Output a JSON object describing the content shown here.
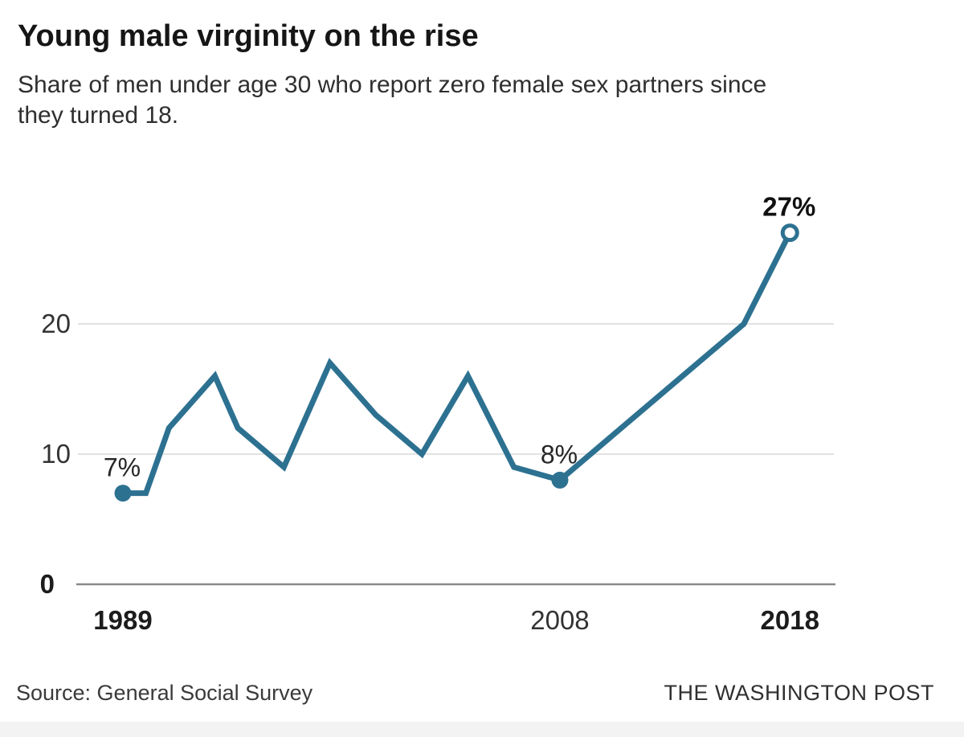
{
  "header": {
    "title": "Young male virginity on the rise",
    "subtitle_lines": [
      "Share of men under age 30 who report zero female sex partners since",
      "they turned 18."
    ]
  },
  "chart_data": {
    "type": "line",
    "title": "Young male virginity on the rise",
    "subtitle": "Share of men under age 30 who report zero female sex partners since they turned 18.",
    "series_name": "Share of men under 30 reporting zero female sex partners (%)",
    "x": [
      1989,
      1990,
      1991,
      1993,
      1994,
      1996,
      1998,
      2000,
      2002,
      2004,
      2006,
      2008,
      2016,
      2018
    ],
    "values": [
      7,
      7,
      12,
      16,
      12,
      9,
      17,
      13,
      10,
      16,
      9,
      8,
      20,
      27
    ],
    "xlabel": "",
    "ylabel": "",
    "xlim": [
      1989,
      2018
    ],
    "ylim": [
      0,
      28
    ],
    "yticks": [
      {
        "value": 0,
        "label": "0",
        "bold": true
      },
      {
        "value": 10,
        "label": "10",
        "bold": false
      },
      {
        "value": 20,
        "label": "20",
        "bold": false
      }
    ],
    "xticks": [
      {
        "value": 1989,
        "label": "1989",
        "bold": true
      },
      {
        "value": 2008,
        "label": "2008",
        "bold": false
      },
      {
        "value": 2018,
        "label": "2018",
        "bold": true
      }
    ],
    "grid": "horizontal-only",
    "legend": "none",
    "line_color": "#2d7191",
    "annotations": [
      {
        "x": 1989,
        "value": 7,
        "label": "7%",
        "marker": "filled",
        "bold": false
      },
      {
        "x": 2008,
        "value": 8,
        "label": "8%",
        "marker": "filled",
        "bold": false
      },
      {
        "x": 2018,
        "value": 27,
        "label": "27%",
        "marker": "open",
        "bold": true
      }
    ]
  },
  "colors": {
    "line": "#2d7191",
    "gridline": "#d8d8d8",
    "baseline": "#8a8a8a",
    "tick_text": "#333333",
    "tick_text_bold": "#1c1c1c",
    "point_label": "#262626",
    "point_label_bold": "#111111"
  },
  "footer": {
    "source": "Source: General Social Survey",
    "publication": "THE WASHINGTON POST"
  }
}
